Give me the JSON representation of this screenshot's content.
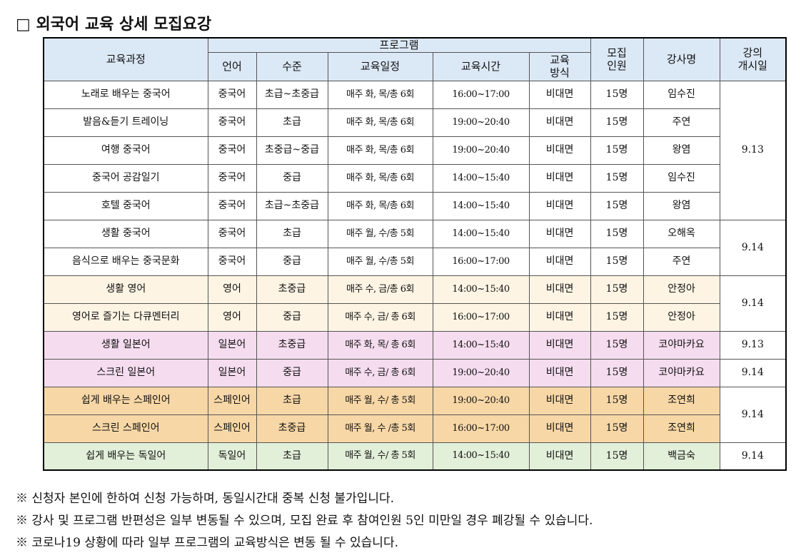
{
  "header": {
    "title": "□ 외국어 교육 상세 모집요강"
  },
  "table": {
    "columns": {
      "course": "교육과정",
      "program": "프로그램",
      "language": "언어",
      "level": "수준",
      "schedule": "교육일정",
      "time": "교육시간",
      "method": "교육\n방식",
      "capacity": "모집\n인원",
      "instructor": "강사명",
      "start": "강의\n개시일"
    },
    "rows": [
      [
        "노래로 배우는 중국어",
        "중국어",
        "초급~초중급",
        "매주 화, 목/총 6회",
        "16:00~17:00",
        "비대면",
        "15명",
        "임수진",
        "9.13"
      ],
      [
        "발음&듣기 트레이닝",
        "중국어",
        "초급",
        "매주 화, 목/총 6회",
        "19:00~20:40",
        "비대면",
        "15명",
        "주연"
      ],
      [
        "여행 중국어",
        "중국어",
        "초중급~중급",
        "매주 화, 목/총 6회",
        "19:00~20:40",
        "비대면",
        "15명",
        "왕염"
      ],
      [
        "중국어 공감일기",
        "중국어",
        "중급",
        "매주 화, 목/총 6회",
        "14:00~15:40",
        "비대면",
        "15명",
        "임수진"
      ],
      [
        "호텔 중국어",
        "중국어",
        "초급~초중급",
        "매주 화, 목/총 6회",
        "14:00~15:40",
        "비대면",
        "15명",
        "왕염"
      ],
      [
        "생활 중국어",
        "중국어",
        "초급",
        "매주 월, 수/총 5회",
        "14:00~15:40",
        "비대면",
        "15명",
        "오해옥",
        "9.14"
      ],
      [
        "음식으로 배우는 중국문화",
        "중국어",
        "중급",
        "매주 월, 수/총 5회",
        "16:00~17:00",
        "비대면",
        "15명",
        "주연"
      ],
      [
        "생활 영어",
        "영어",
        "초중급",
        "매주 수, 금/총 6회",
        "14:00~15:40",
        "비대면",
        "15명",
        "안정아",
        "9.14"
      ],
      [
        "영어로 즐기는 다큐멘터리",
        "영어",
        "중급",
        "매주 수, 금/ 총 6회",
        "16:00~17:00",
        "비대면",
        "15명",
        "안정아"
      ],
      [
        "생활 일본어",
        "일본어",
        "초중급",
        "매주 화, 목/ 총 6회",
        "14:00~15:40",
        "비대면",
        "15명",
        "코야마카요",
        "9.13"
      ],
      [
        "스크린 일본어",
        "일본어",
        "중급",
        "매주 수, 금/ 총 6회",
        "19:00~20:40",
        "비대면",
        "15명",
        "코야마카요",
        "9.14"
      ],
      [
        "쉽게 배우는 스페인어",
        "스페인어",
        "초급",
        "매주 월, 수/ 총 5회",
        "19:00~20:40",
        "비대면",
        "15명",
        "조연희",
        "9.14"
      ],
      [
        "스크린 스페인어",
        "스페인어",
        "초중급",
        "매주 월, 수 /총 5회",
        "16:00~17:00",
        "비대면",
        "15명",
        "조연희"
      ],
      [
        "쉽게 배우는 독일어",
        "독일어",
        "초급",
        "매주 월, 수/ 총 5회",
        "14:00~15:40",
        "비대면",
        "15명",
        "백금숙",
        "9.14"
      ]
    ],
    "row_colors": [
      "#ffffff",
      "#ffffff",
      "#ffffff",
      "#ffffff",
      "#ffffff",
      "#ffffff",
      "#ffffff",
      "#fdf4e4",
      "#fdf4e4",
      "#f5dcef",
      "#f5dcef",
      "#f7d7a6",
      "#f7d7a6",
      "#e2efd9"
    ]
  },
  "notes": [
    "※ 신청자 본인에 한하여 신청 가능하며, 동일시간대 중복 신청 불가입니다.",
    "※ 강사 및 프로그램 반편성은 일부 변동될 수 있으며, 모집 완료 후 참여인원 5인 미만일 경우 폐강될 수 있습니다.",
    "※ 코로나19 상황에 따라 일부 프로그램의 교육방식은 변동 될 수 있습니다."
  ]
}
